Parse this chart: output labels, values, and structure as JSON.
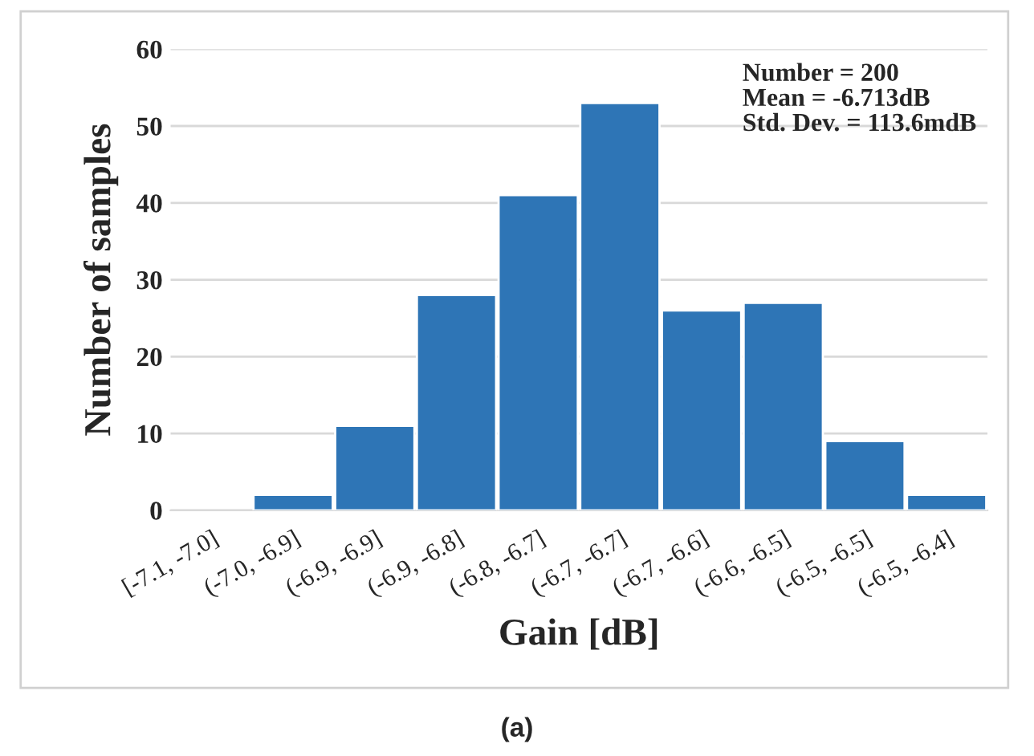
{
  "chart_data": {
    "type": "bar",
    "categories": [
      "[-7.1, -7.0]",
      "(-7.0, -6.9]",
      "(-6.9, -6.9]",
      "(-6.9, -6.8]",
      "(-6.8, -6.7]",
      "(-6.7, -6.7]",
      "(-6.7, -6.6]",
      "(-6.6, -6.5]",
      "(-6.5, -6.5]",
      "(-6.5, -6.4]"
    ],
    "values": [
      0,
      2,
      11,
      28,
      41,
      53,
      26,
      27,
      9,
      2
    ],
    "color": "#2e75b6",
    "xlabel": "Gain [dB]",
    "ylabel": "Number of samples",
    "ylim": [
      0,
      60
    ],
    "yticks": [
      0,
      10,
      20,
      30,
      40,
      50,
      60
    ],
    "grid": "y",
    "annotations": [
      "Number = 200\nMean = -6.713dB\nStd. Dev. = 113.6mdB",
      "(a)"
    ]
  }
}
